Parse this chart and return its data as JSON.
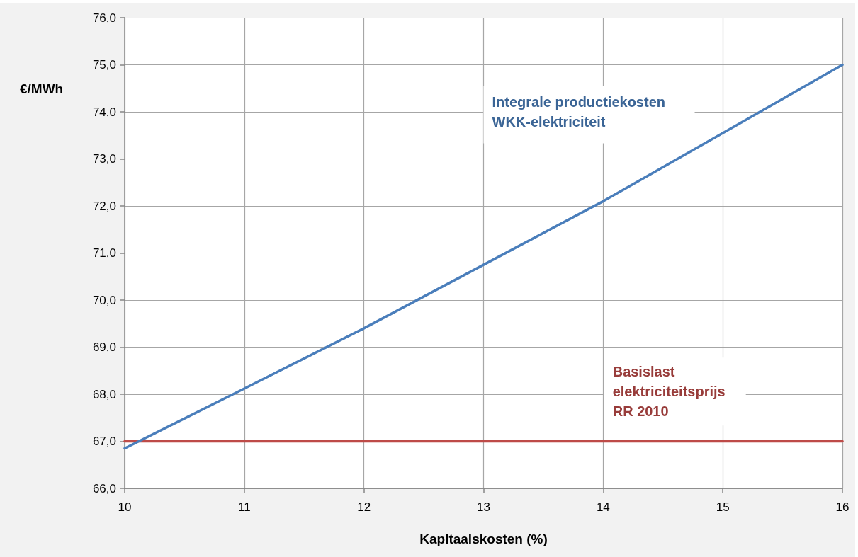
{
  "chart_data": {
    "type": "line",
    "xlabel": "Kapitaalskosten (%)",
    "ylabel": "€/MWh",
    "xlim": [
      10,
      16
    ],
    "xticks": [
      10,
      11,
      12,
      13,
      14,
      15,
      16
    ],
    "ylim": [
      66,
      76
    ],
    "yticks": [
      {
        "value": 66,
        "label": "66,0"
      },
      {
        "value": 67,
        "label": "67,0"
      },
      {
        "value": 68,
        "label": "68,0"
      },
      {
        "value": 69,
        "label": "69,0"
      },
      {
        "value": 70,
        "label": "70,0"
      },
      {
        "value": 71,
        "label": "71,0"
      },
      {
        "value": 72,
        "label": "72,0"
      },
      {
        "value": 73,
        "label": "73,0"
      },
      {
        "value": 74,
        "label": "74,0"
      },
      {
        "value": 75,
        "label": "75,0"
      },
      {
        "value": 76,
        "label": "76,0"
      }
    ],
    "grid": true,
    "marker": "none",
    "line_style": "solid",
    "series": [
      {
        "name": "Integrale productiekosten WKK-elektriciteit",
        "color": "#4a7ebb",
        "x": [
          10,
          11,
          12,
          13,
          14,
          15,
          16
        ],
        "values": [
          66.85,
          68.12,
          69.4,
          70.75,
          72.1,
          73.55,
          75.0
        ]
      },
      {
        "name": "Basislast elektriciteitsprijs RR 2010",
        "color": "#be4b48",
        "x": [
          10,
          16
        ],
        "values": [
          67,
          67
        ]
      }
    ]
  }
}
